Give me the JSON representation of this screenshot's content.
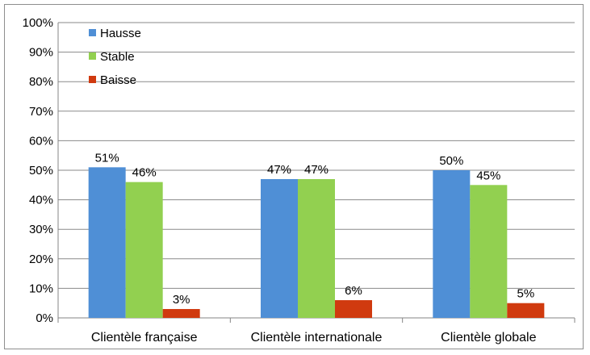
{
  "chart_data": {
    "type": "bar",
    "categories": [
      "Clientèle française",
      "Clientèle internationale",
      "Clientèle globale"
    ],
    "series": [
      {
        "name": "Hausse",
        "color": "#4f8fd6",
        "values": [
          51,
          47,
          50
        ],
        "labels": [
          "51%",
          "47%",
          "50%"
        ]
      },
      {
        "name": "Stable",
        "color": "#92d050",
        "values": [
          46,
          47,
          45
        ],
        "labels": [
          "46%",
          "47%",
          "45%"
        ]
      },
      {
        "name": "Baisse",
        "color": "#d03a0f",
        "values": [
          3,
          6,
          5
        ],
        "labels": [
          "3%",
          "6%",
          "5%"
        ]
      }
    ],
    "ylim": [
      0,
      100
    ],
    "yticks": [
      "0%",
      "10%",
      "20%",
      "30%",
      "40%",
      "50%",
      "60%",
      "70%",
      "80%",
      "90%",
      "100%"
    ],
    "grid": true,
    "legend_position": "top-left",
    "title": "",
    "xlabel": "",
    "ylabel": ""
  }
}
